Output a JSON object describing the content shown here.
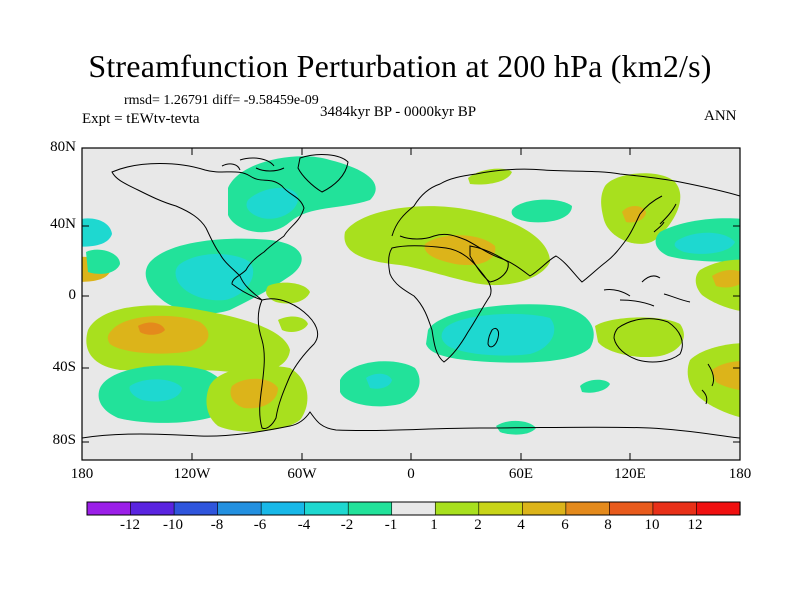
{
  "title": "Streamfunction Perturbation at 200 hPa (km2/s)",
  "stats_line": "rmsd= 1.26791 diff= -9.58459e-09",
  "experiment_line": "Expt = tEWtv-tevta",
  "period_line": "3484kyr BP - 0000kyr BP",
  "season": "ANN",
  "lat_labels": [
    "80N",
    "40N",
    "0",
    "40S",
    "80S"
  ],
  "lon_labels": [
    "180",
    "120W",
    "60W",
    "0",
    "60E",
    "120E",
    "180"
  ],
  "colorbar": {
    "labels": [
      "-12",
      "-10",
      "-8",
      "-6",
      "-4",
      "-2",
      "-1",
      "1",
      "2",
      "4",
      "6",
      "8",
      "10",
      "12"
    ],
    "colors": [
      "#9b1fe8",
      "#5a24e0",
      "#2f55dc",
      "#2390e0",
      "#18b8e8",
      "#1ed8d0",
      "#22e29a",
      "#e8e8e8",
      "#a8e01e",
      "#c8d418",
      "#dcb41a",
      "#e48a1c",
      "#e85a1c",
      "#e83018",
      "#f01010"
    ]
  },
  "colors": {
    "neutral": "#e8e8e8",
    "neg1": "#22e29a",
    "neg2": "#1ed8d0",
    "pos1": "#a8e01e",
    "pos2": "#dcb41a",
    "pos3": "#e48a1c",
    "coast": "#000000"
  }
}
